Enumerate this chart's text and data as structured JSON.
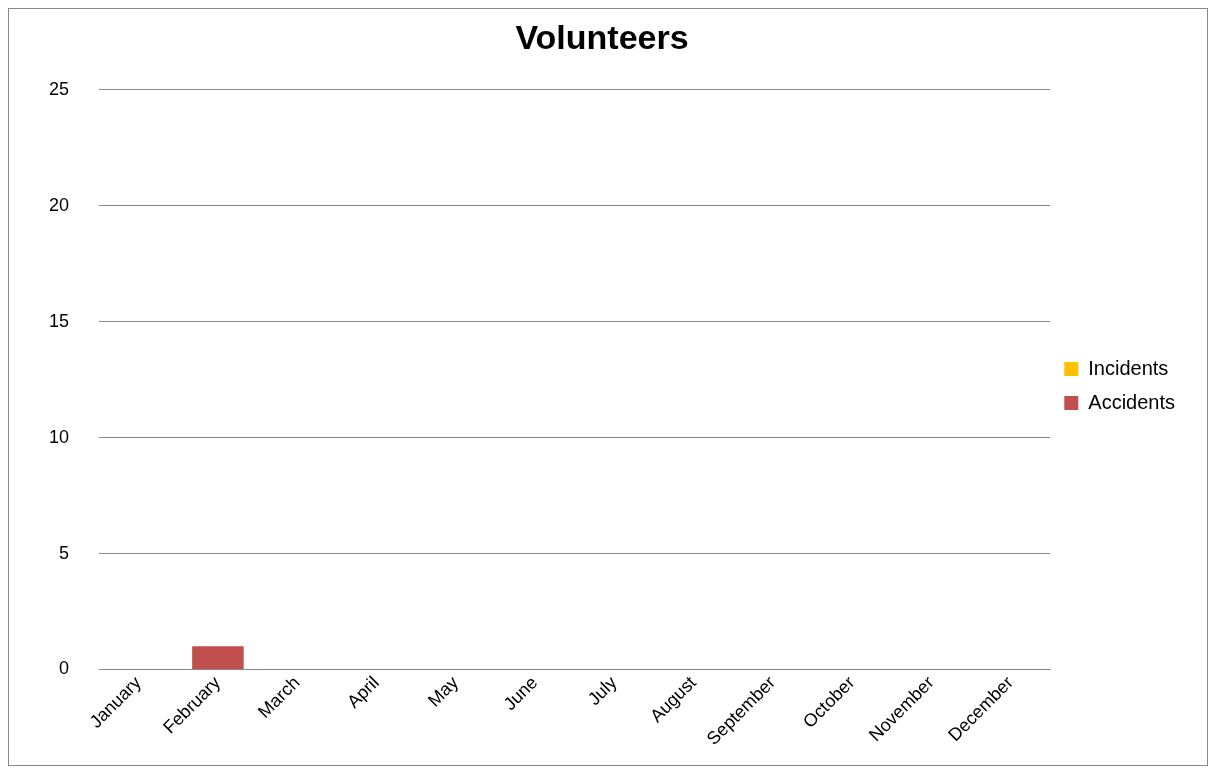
{
  "chart_data": {
    "type": "bar",
    "title": "Volunteers",
    "stacked": true,
    "categories": [
      "January",
      "February",
      "March",
      "April",
      "May",
      "June",
      "July",
      "August",
      "September",
      "October",
      "November",
      "December"
    ],
    "series": [
      {
        "name": "Incidents",
        "color": "#ffc000",
        "values": [
          0,
          0,
          0,
          0,
          0,
          0,
          0,
          0,
          0,
          0,
          0,
          0
        ]
      },
      {
        "name": "Accidents",
        "color": "#c0504d",
        "values": [
          0,
          1,
          0,
          0,
          0,
          0,
          0,
          0,
          0,
          0,
          0,
          0
        ]
      }
    ],
    "ylim": [
      0,
      25
    ],
    "yticks": [
      0,
      5,
      10,
      15,
      20,
      25
    ],
    "grid": "y",
    "legend": "right"
  }
}
